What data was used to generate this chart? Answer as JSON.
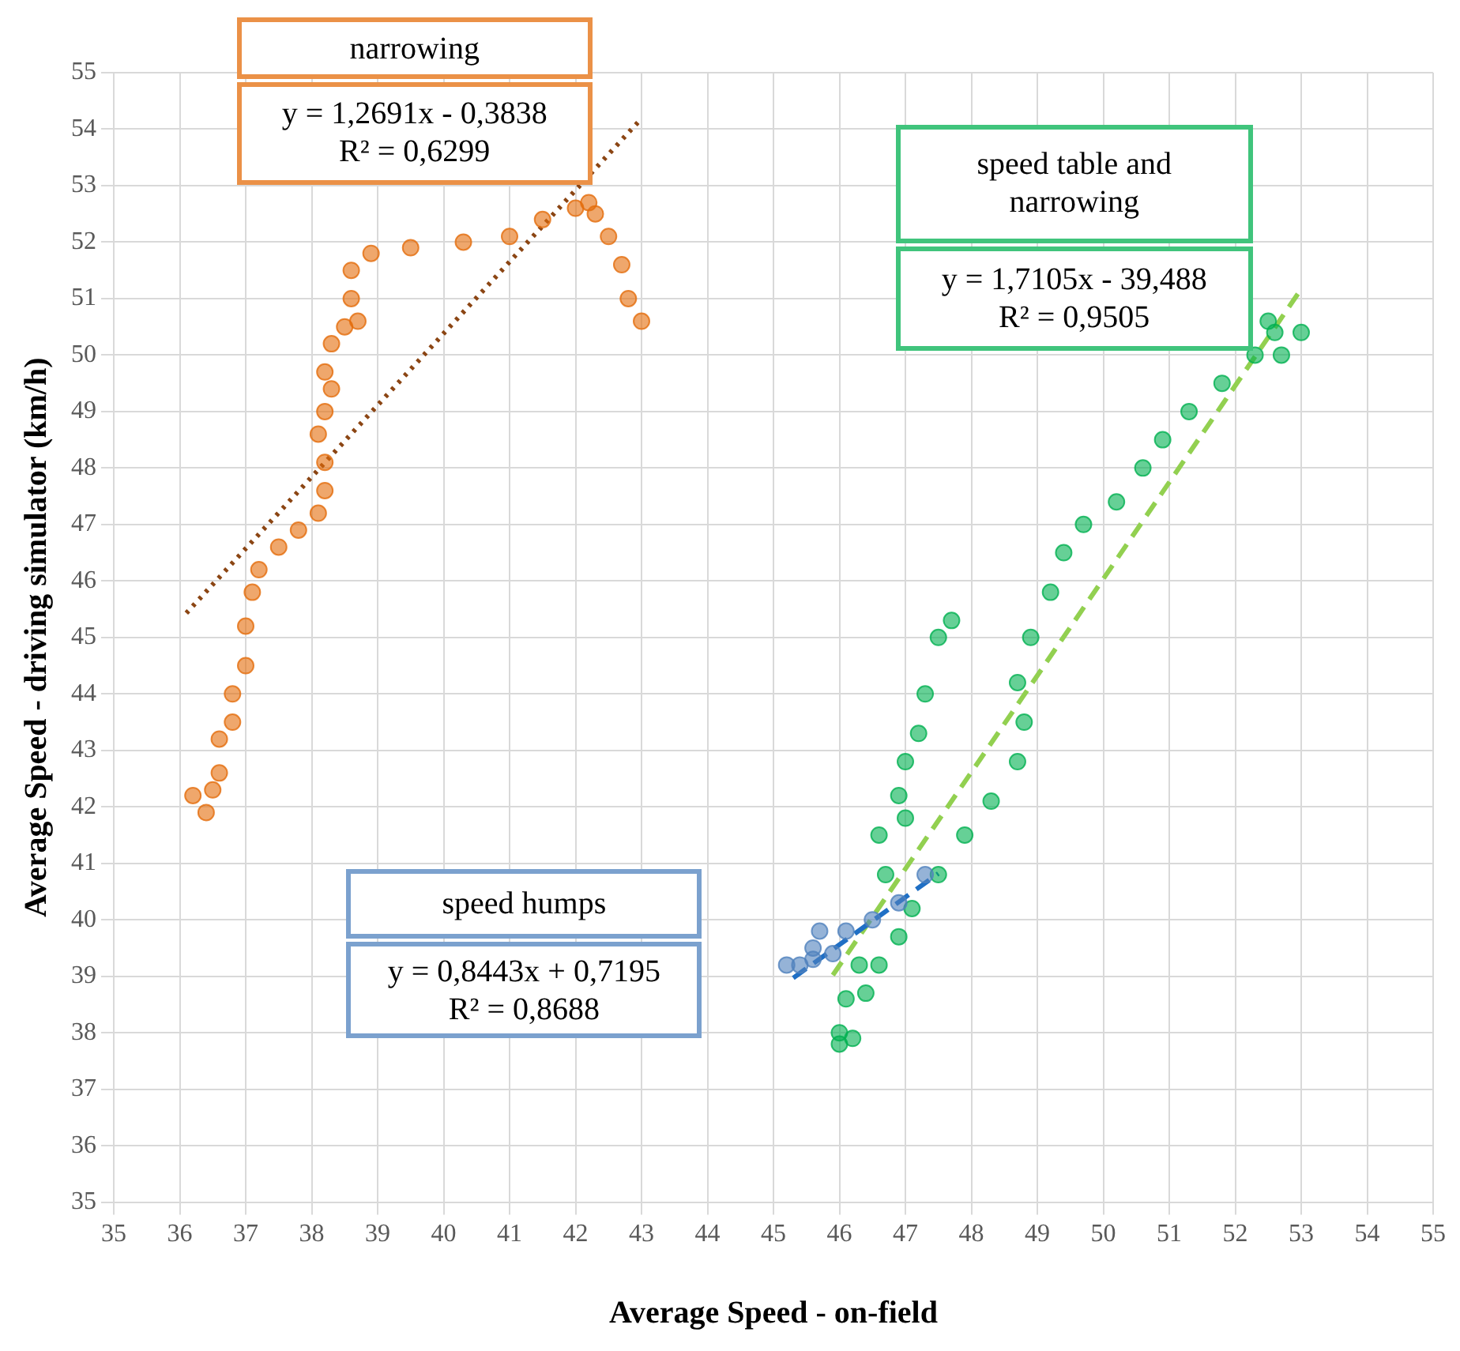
{
  "chart_data": {
    "type": "scatter",
    "xlabel": "Average Speed - on-field",
    "ylabel": "Average Speed - driving simulator (km/h)",
    "xlim": [
      35,
      55
    ],
    "ylim": [
      35,
      55
    ],
    "xticks": [
      35,
      36,
      37,
      38,
      39,
      40,
      41,
      42,
      43,
      44,
      45,
      46,
      47,
      48,
      49,
      50,
      51,
      52,
      53,
      54,
      55
    ],
    "yticks": [
      35,
      36,
      37,
      38,
      39,
      40,
      41,
      42,
      43,
      44,
      45,
      46,
      47,
      48,
      49,
      50,
      51,
      52,
      53,
      54,
      55
    ],
    "grid": true,
    "annotations": [
      "narrowing",
      "y = 1,2691x - 0,3838",
      "R² = 0,6299",
      "speed humps",
      "y = 0,8443x + 0,7195",
      "R² = 0,8688",
      "speed table and narrowing",
      "y = 1,7105x - 39,488",
      "R² = 0,9505"
    ],
    "series": [
      {
        "type": "scatter",
        "color": "#e46c0a",
        "marker": "circle",
        "x": [
          36.4,
          36.2,
          36.5,
          36.6,
          36.6,
          36.8,
          36.8,
          37.0,
          37.0,
          37.1,
          37.2,
          37.5,
          37.8,
          38.1,
          38.2,
          38.2,
          38.1,
          38.2,
          38.3,
          38.2,
          38.3,
          38.5,
          38.7,
          38.6,
          38.6,
          38.9,
          39.5,
          40.3,
          41.0,
          41.5,
          42.0,
          42.2,
          42.3,
          42.5,
          42.7,
          42.8,
          43.0
        ],
        "values": [
          41.9,
          42.2,
          42.3,
          42.6,
          43.2,
          43.5,
          44.0,
          44.5,
          45.2,
          45.8,
          46.2,
          46.6,
          46.9,
          47.2,
          47.6,
          48.1,
          48.6,
          49.0,
          49.4,
          49.7,
          50.2,
          50.5,
          50.6,
          51.0,
          51.5,
          51.8,
          51.9,
          52.0,
          52.1,
          52.4,
          52.6,
          52.7,
          52.5,
          52.1,
          51.6,
          51.0,
          50.6
        ]
      },
      {
        "type": "scatter",
        "color": "#4f81bd",
        "marker": "circle",
        "x": [
          45.2,
          45.4,
          45.6,
          45.7,
          45.6,
          45.9,
          46.1,
          46.5,
          46.9,
          47.3
        ],
        "values": [
          39.2,
          39.2,
          39.3,
          39.8,
          39.5,
          39.4,
          39.8,
          40.0,
          40.3,
          40.8
        ]
      },
      {
        "type": "scatter",
        "color": "#00b050",
        "marker": "circle",
        "x": [
          47.7,
          47.5,
          47.3,
          47.2,
          47.0,
          46.9,
          47.0,
          46.6,
          46.7,
          46.5,
          46.3,
          46.1,
          46.0,
          46.0,
          46.2,
          46.4,
          46.6,
          46.9,
          47.1,
          47.5,
          47.9,
          48.3,
          48.7,
          48.8,
          48.7,
          48.9,
          49.2,
          49.4,
          49.7,
          50.2,
          50.6,
          50.9,
          51.3,
          51.8,
          52.3,
          52.6,
          53.0,
          52.7,
          52.5
        ],
        "values": [
          45.3,
          45.0,
          44.0,
          43.3,
          42.8,
          42.2,
          41.8,
          41.5,
          40.8,
          null,
          39.2,
          38.6,
          38.0,
          37.8,
          37.9,
          38.7,
          39.2,
          39.7,
          40.2,
          40.8,
          41.5,
          42.1,
          42.8,
          43.5,
          44.2,
          45.0,
          45.8,
          46.5,
          47.0,
          47.4,
          48.0,
          48.5,
          49.0,
          49.5,
          50.0,
          50.4,
          50.4,
          50.0,
          50.6
        ]
      },
      {
        "type": "line",
        "color": "#8b4513",
        "marker": "none",
        "line_style": "dotted",
        "x": [
          36.1,
          43.0
        ],
        "values": [
          45.43,
          54.19
        ]
      },
      {
        "type": "line",
        "color": "#1f6fc5",
        "marker": "none",
        "line_style": "dashed",
        "x": [
          45.3,
          47.5
        ],
        "values": [
          38.97,
          40.82
        ]
      },
      {
        "type": "line",
        "color": "#92d050",
        "marker": "none",
        "line_style": "dashed",
        "x": [
          45.9,
          53.0
        ],
        "values": [
          39.02,
          51.17
        ]
      }
    ]
  }
}
